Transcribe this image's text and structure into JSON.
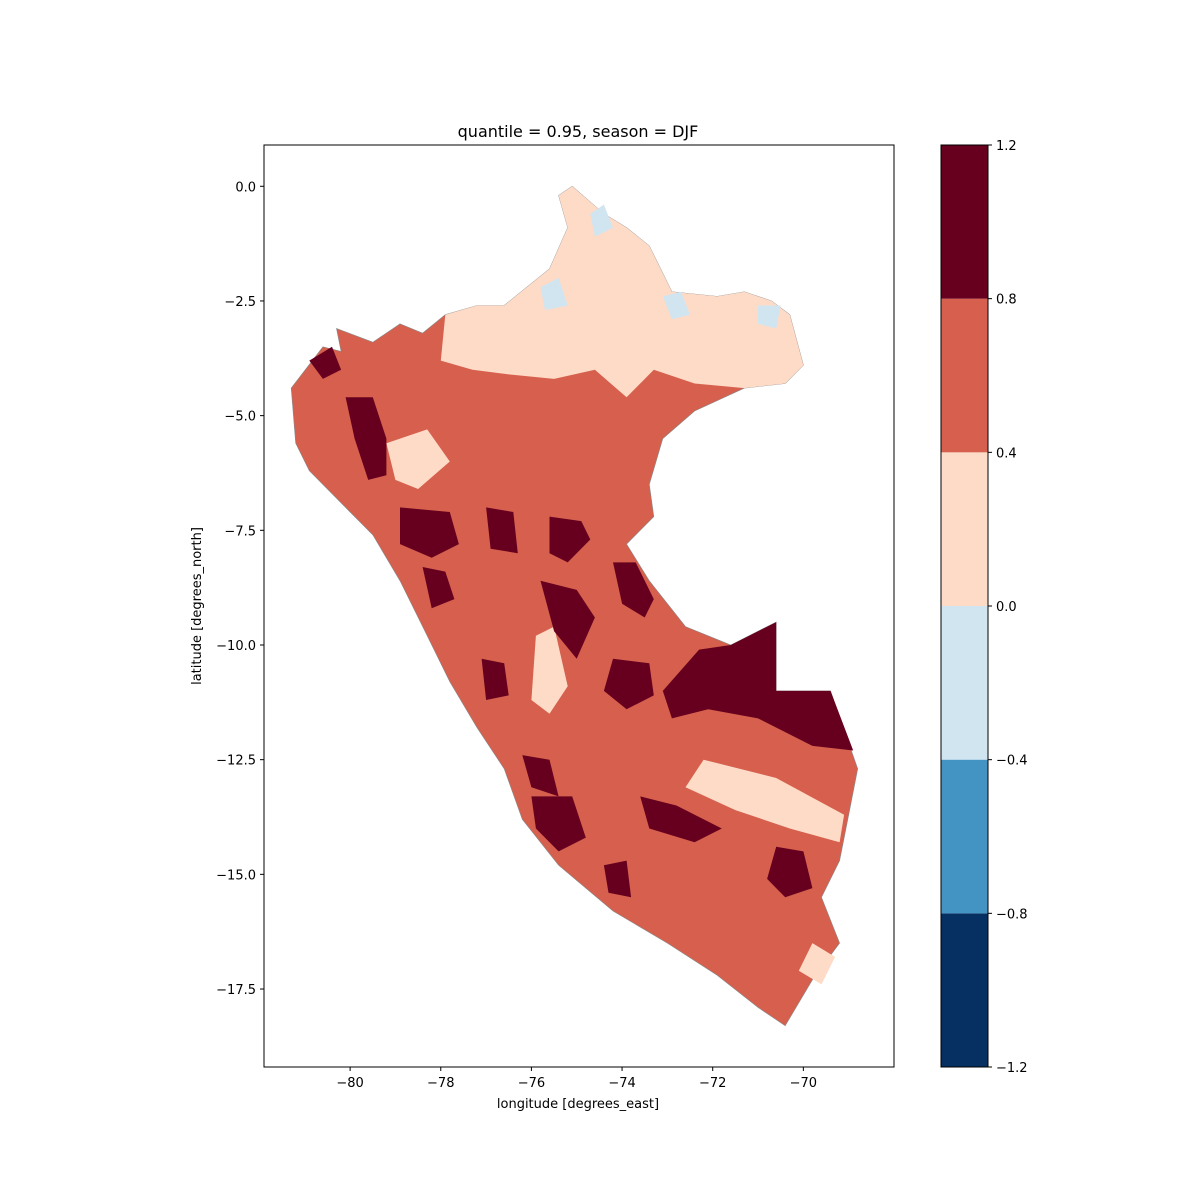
{
  "chart_data": {
    "type": "heatmap",
    "title": "quantile = 0.95, season = DJF",
    "xlabel": "longitude [degrees_east]",
    "ylabel": "latitude [degrees_north]",
    "xlim": [
      -81.9,
      -68.0
    ],
    "ylim": [
      -19.2,
      0.9
    ],
    "xticks": [
      -80,
      -78,
      -76,
      -74,
      -72,
      -70
    ],
    "xtick_labels": [
      "−80",
      "−78",
      "−76",
      "−74",
      "−72",
      "−70"
    ],
    "yticks": [
      0.0,
      -2.5,
      -5.0,
      -7.5,
      -10.0,
      -12.5,
      -15.0,
      -17.5
    ],
    "ytick_labels": [
      "0.0",
      "−2.5",
      "−5.0",
      "−7.5",
      "−10.0",
      "−12.5",
      "−15.0",
      "−17.5"
    ],
    "colorbar": {
      "boundaries": [
        -1.2,
        -0.8,
        -0.4,
        0.0,
        0.4,
        0.8,
        1.2
      ],
      "tick_labels": [
        "−1.2",
        "−0.8",
        "−0.4",
        "0.0",
        "0.4",
        "0.8",
        "1.2"
      ],
      "colors": [
        "#053061",
        "#4393c3",
        "#d1e5f0",
        "#fddbc7",
        "#d6604d",
        "#67001f"
      ]
    },
    "regions": [
      {
        "name": "peru-outline",
        "level": 4,
        "points": [
          [
            -81.3,
            -4.4
          ],
          [
            -80.6,
            -3.5
          ],
          [
            -80.2,
            -3.6
          ],
          [
            -80.3,
            -3.1
          ],
          [
            -79.5,
            -3.4
          ],
          [
            -78.9,
            -3.0
          ],
          [
            -78.4,
            -3.2
          ],
          [
            -77.9,
            -2.8
          ],
          [
            -77.2,
            -2.6
          ],
          [
            -76.6,
            -2.6
          ],
          [
            -75.6,
            -1.8
          ],
          [
            -75.2,
            -0.9
          ],
          [
            -75.4,
            -0.2
          ],
          [
            -75.1,
            0.0
          ],
          [
            -74.4,
            -0.6
          ],
          [
            -73.9,
            -0.9
          ],
          [
            -73.4,
            -1.3
          ],
          [
            -72.9,
            -2.3
          ],
          [
            -71.9,
            -2.4
          ],
          [
            -71.3,
            -2.3
          ],
          [
            -70.7,
            -2.5
          ],
          [
            -70.3,
            -2.8
          ],
          [
            -70.0,
            -3.9
          ],
          [
            -70.4,
            -4.3
          ],
          [
            -71.3,
            -4.4
          ],
          [
            -72.4,
            -4.9
          ],
          [
            -73.1,
            -5.5
          ],
          [
            -73.4,
            -6.5
          ],
          [
            -73.3,
            -7.2
          ],
          [
            -73.9,
            -7.8
          ],
          [
            -73.4,
            -8.6
          ],
          [
            -72.6,
            -9.6
          ],
          [
            -71.6,
            -10.0
          ],
          [
            -70.6,
            -9.5
          ],
          [
            -70.6,
            -11.0
          ],
          [
            -69.4,
            -11.0
          ],
          [
            -68.8,
            -12.7
          ],
          [
            -69.0,
            -13.7
          ],
          [
            -69.2,
            -14.7
          ],
          [
            -69.6,
            -15.5
          ],
          [
            -69.2,
            -16.5
          ],
          [
            -69.8,
            -17.3
          ],
          [
            -70.4,
            -18.3
          ],
          [
            -71.0,
            -17.9
          ],
          [
            -71.9,
            -17.2
          ],
          [
            -73.0,
            -16.5
          ],
          [
            -74.2,
            -15.8
          ],
          [
            -75.4,
            -14.8
          ],
          [
            -76.2,
            -13.8
          ],
          [
            -76.6,
            -12.7
          ],
          [
            -77.2,
            -11.8
          ],
          [
            -77.8,
            -10.8
          ],
          [
            -78.3,
            -9.8
          ],
          [
            -78.9,
            -8.6
          ],
          [
            -79.5,
            -7.6
          ],
          [
            -80.0,
            -7.1
          ],
          [
            -80.9,
            -6.2
          ],
          [
            -81.2,
            -5.6
          ]
        ]
      },
      {
        "name": "northern-amazon",
        "level": 3,
        "points": [
          [
            -77.9,
            -2.8
          ],
          [
            -77.2,
            -2.6
          ],
          [
            -76.6,
            -2.6
          ],
          [
            -75.6,
            -1.8
          ],
          [
            -75.2,
            -0.9
          ],
          [
            -75.4,
            -0.2
          ],
          [
            -75.1,
            0.0
          ],
          [
            -74.4,
            -0.6
          ],
          [
            -73.9,
            -0.9
          ],
          [
            -73.4,
            -1.3
          ],
          [
            -72.9,
            -2.3
          ],
          [
            -71.9,
            -2.4
          ],
          [
            -71.3,
            -2.3
          ],
          [
            -70.7,
            -2.5
          ],
          [
            -70.3,
            -2.8
          ],
          [
            -70.0,
            -3.9
          ],
          [
            -70.4,
            -4.3
          ],
          [
            -71.3,
            -4.4
          ],
          [
            -72.4,
            -4.3
          ],
          [
            -73.3,
            -4.0
          ],
          [
            -73.9,
            -4.6
          ],
          [
            -74.6,
            -4.0
          ],
          [
            -75.5,
            -4.2
          ],
          [
            -76.5,
            -4.1
          ],
          [
            -77.3,
            -4.0
          ],
          [
            -78.0,
            -3.8
          ]
        ]
      },
      {
        "name": "northwest-pale",
        "level": 3,
        "points": [
          [
            -79.2,
            -5.6
          ],
          [
            -78.3,
            -5.3
          ],
          [
            -77.8,
            -6.0
          ],
          [
            -78.5,
            -6.6
          ],
          [
            -79.0,
            -6.4
          ]
        ]
      },
      {
        "name": "central-pale",
        "level": 3,
        "points": [
          [
            -75.9,
            -9.8
          ],
          [
            -75.5,
            -9.6
          ],
          [
            -75.2,
            -10.9
          ],
          [
            -75.6,
            -11.5
          ],
          [
            -76.0,
            -11.2
          ]
        ]
      },
      {
        "name": "south-pale-band",
        "level": 3,
        "points": [
          [
            -72.2,
            -12.5
          ],
          [
            -70.6,
            -12.9
          ],
          [
            -69.1,
            -13.7
          ],
          [
            -69.2,
            -14.3
          ],
          [
            -70.3,
            -14.0
          ],
          [
            -71.5,
            -13.6
          ],
          [
            -72.6,
            -13.1
          ]
        ]
      },
      {
        "name": "southeast-pale",
        "level": 3,
        "points": [
          [
            -69.8,
            -16.5
          ],
          [
            -69.3,
            -16.8
          ],
          [
            -69.6,
            -17.4
          ],
          [
            -70.1,
            -17.1
          ]
        ]
      },
      {
        "name": "amazon-blue-1",
        "level": 2,
        "points": [
          [
            -75.8,
            -2.2
          ],
          [
            -75.4,
            -2.0
          ],
          [
            -75.2,
            -2.6
          ],
          [
            -75.7,
            -2.7
          ]
        ]
      },
      {
        "name": "amazon-blue-2",
        "level": 2,
        "points": [
          [
            -74.7,
            -0.6
          ],
          [
            -74.4,
            -0.4
          ],
          [
            -74.2,
            -0.9
          ],
          [
            -74.6,
            -1.1
          ]
        ]
      },
      {
        "name": "amazon-blue-3",
        "level": 2,
        "points": [
          [
            -73.1,
            -2.4
          ],
          [
            -72.7,
            -2.3
          ],
          [
            -72.5,
            -2.8
          ],
          [
            -72.9,
            -2.9
          ]
        ]
      },
      {
        "name": "amazon-blue-4",
        "level": 2,
        "points": [
          [
            -71.0,
            -2.6
          ],
          [
            -70.5,
            -2.6
          ],
          [
            -70.6,
            -3.1
          ],
          [
            -71.0,
            -3.0
          ]
        ]
      },
      {
        "name": "coastal-strip-north",
        "level": 5,
        "points": [
          [
            -80.1,
            -4.6
          ],
          [
            -79.5,
            -4.6
          ],
          [
            -79.2,
            -5.5
          ],
          [
            -79.2,
            -6.3
          ],
          [
            -79.6,
            -6.4
          ],
          [
            -79.9,
            -5.5
          ]
        ]
      },
      {
        "name": "cajamarca-patch",
        "level": 5,
        "points": [
          [
            -78.9,
            -7.0
          ],
          [
            -77.8,
            -7.1
          ],
          [
            -77.6,
            -7.8
          ],
          [
            -78.2,
            -8.1
          ],
          [
            -78.9,
            -7.8
          ]
        ]
      },
      {
        "name": "amazonas-patch",
        "level": 5,
        "points": [
          [
            -77.0,
            -7.0
          ],
          [
            -76.4,
            -7.1
          ],
          [
            -76.3,
            -8.0
          ],
          [
            -76.9,
            -7.9
          ]
        ]
      },
      {
        "name": "san-martin-patch",
        "level": 5,
        "points": [
          [
            -75.6,
            -7.2
          ],
          [
            -74.9,
            -7.3
          ],
          [
            -74.7,
            -7.7
          ],
          [
            -75.2,
            -8.2
          ],
          [
            -75.6,
            -8.0
          ]
        ]
      },
      {
        "name": "ucayali-east-patch",
        "level": 5,
        "points": [
          [
            -74.2,
            -8.2
          ],
          [
            -73.7,
            -8.2
          ],
          [
            -73.3,
            -9.0
          ],
          [
            -73.5,
            -9.4
          ],
          [
            -74.0,
            -9.1
          ]
        ]
      },
      {
        "name": "huanuco-patch",
        "level": 5,
        "points": [
          [
            -75.8,
            -8.6
          ],
          [
            -75.0,
            -8.8
          ],
          [
            -74.6,
            -9.4
          ],
          [
            -75.0,
            -10.3
          ],
          [
            -75.5,
            -9.7
          ]
        ]
      },
      {
        "name": "ancash-patch",
        "level": 5,
        "points": [
          [
            -78.4,
            -8.3
          ],
          [
            -77.9,
            -8.4
          ],
          [
            -77.7,
            -9.0
          ],
          [
            -78.2,
            -9.2
          ]
        ]
      },
      {
        "name": "madre-de-dios-large",
        "level": 5,
        "points": [
          [
            -72.3,
            -10.1
          ],
          [
            -71.6,
            -10.0
          ],
          [
            -70.6,
            -9.5
          ],
          [
            -70.6,
            -11.0
          ],
          [
            -69.4,
            -11.0
          ],
          [
            -68.9,
            -12.3
          ],
          [
            -69.8,
            -12.2
          ],
          [
            -71.0,
            -11.6
          ],
          [
            -72.1,
            -11.4
          ],
          [
            -72.9,
            -11.6
          ],
          [
            -73.1,
            -11.0
          ]
        ]
      },
      {
        "name": "junin-patch",
        "level": 5,
        "points": [
          [
            -74.2,
            -10.3
          ],
          [
            -73.4,
            -10.4
          ],
          [
            -73.3,
            -11.1
          ],
          [
            -73.9,
            -11.4
          ],
          [
            -74.4,
            -11.0
          ]
        ]
      },
      {
        "name": "lima-patch",
        "level": 5,
        "points": [
          [
            -77.1,
            -10.3
          ],
          [
            -76.6,
            -10.4
          ],
          [
            -76.5,
            -11.1
          ],
          [
            -77.0,
            -11.2
          ]
        ]
      },
      {
        "name": "ica-patch",
        "level": 5,
        "points": [
          [
            -76.2,
            -12.4
          ],
          [
            -75.6,
            -12.5
          ],
          [
            -75.4,
            -13.3
          ],
          [
            -76.0,
            -13.1
          ]
        ]
      },
      {
        "name": "ayacucho-patch",
        "level": 5,
        "points": [
          [
            -76.0,
            -13.3
          ],
          [
            -75.1,
            -13.3
          ],
          [
            -74.8,
            -14.2
          ],
          [
            -75.4,
            -14.5
          ],
          [
            -75.9,
            -14.0
          ]
        ]
      },
      {
        "name": "cusco-patch",
        "level": 5,
        "points": [
          [
            -73.6,
            -13.3
          ],
          [
            -72.8,
            -13.5
          ],
          [
            -71.8,
            -14.0
          ],
          [
            -72.4,
            -14.3
          ],
          [
            -73.4,
            -14.0
          ]
        ]
      },
      {
        "name": "apurimac-patch",
        "level": 5,
        "points": [
          [
            -74.4,
            -14.8
          ],
          [
            -73.9,
            -14.7
          ],
          [
            -73.8,
            -15.5
          ],
          [
            -74.3,
            -15.4
          ]
        ]
      },
      {
        "name": "puno-patch",
        "level": 5,
        "points": [
          [
            -70.6,
            -14.4
          ],
          [
            -70.0,
            -14.5
          ],
          [
            -69.8,
            -15.3
          ],
          [
            -70.4,
            -15.5
          ],
          [
            -70.8,
            -15.1
          ]
        ]
      },
      {
        "name": "north-tip-patch",
        "level": 5,
        "points": [
          [
            -80.9,
            -3.8
          ],
          [
            -80.4,
            -3.5
          ],
          [
            -80.2,
            -4.0
          ],
          [
            -80.6,
            -4.2
          ]
        ]
      }
    ]
  }
}
